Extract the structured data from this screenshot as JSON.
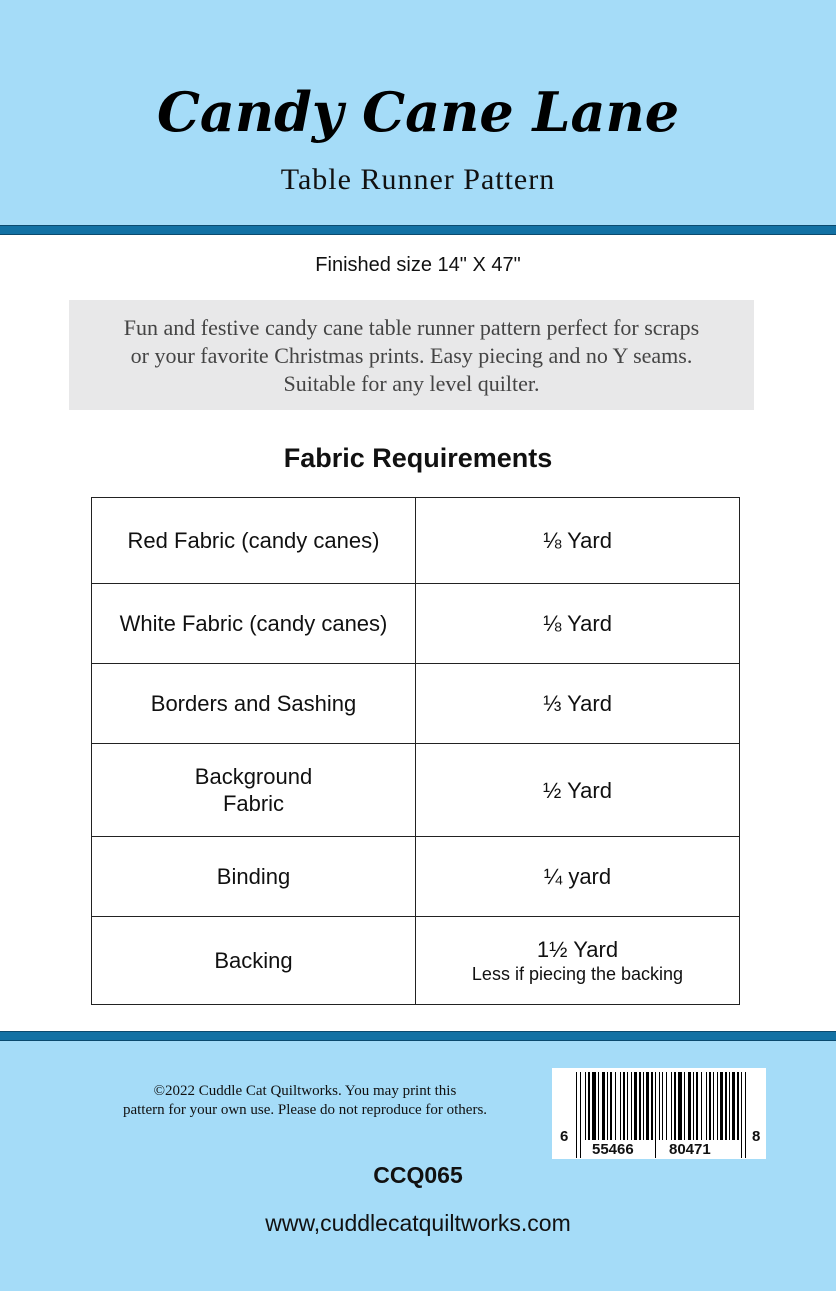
{
  "header": {
    "title": "Candy Cane Lane",
    "subtitle": "Table Runner Pattern"
  },
  "finished_size": "Finished size 14\" X 47\"",
  "description": [
    "Fun and festive candy cane table runner pattern perfect for scraps",
    "or your favorite Christmas prints. Easy piecing and no Y seams.",
    "Suitable for any level quilter."
  ],
  "fabric_heading": "Fabric Requirements",
  "fabric_rows": [
    {
      "item": "Red Fabric (candy canes)",
      "amount": "⅛ Yard"
    },
    {
      "item": "White Fabric (candy canes)",
      "amount": "⅛ Yard"
    },
    {
      "item": "Borders and Sashing",
      "amount": "⅓ Yard"
    },
    {
      "item": "Background",
      "item2": "Fabric",
      "amount": "½  Yard"
    },
    {
      "item": "Binding",
      "amount": "¼  yard"
    },
    {
      "item": "Backing",
      "amount": "1½  Yard",
      "note": "Less if piecing the backing"
    }
  ],
  "footer": {
    "copyright": [
      "©2022 Cuddle Cat Quiltworks. You may print this",
      "pattern for your own use. Please do not reproduce for others."
    ],
    "barcode": {
      "d1": "6",
      "d2": "55466",
      "d3": "80471",
      "d4": "8"
    },
    "sku": "CCQ065",
    "url": "www,cuddlecatquiltworks.com"
  },
  "colors": {
    "sky": "#a5dcf8",
    "band": "#1271a4"
  }
}
